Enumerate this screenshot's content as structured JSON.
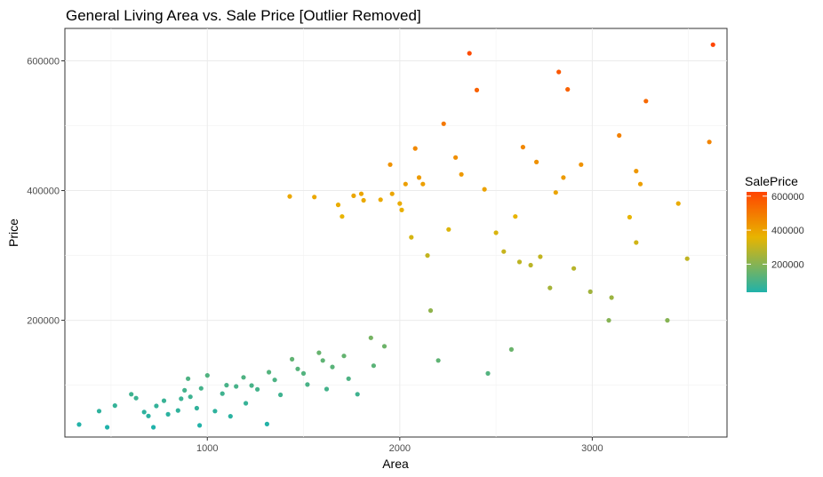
{
  "chart_data": {
    "type": "scatter",
    "title": "General Living Area vs. Sale Price [Outlier Removed]",
    "xlabel": "Area",
    "ylabel": "Price",
    "xlim": [
      260,
      3700
    ],
    "ylim": [
      20000,
      650000
    ],
    "x_ticks": [
      1000,
      2000,
      3000
    ],
    "x_tick_labels": [
      "1000",
      "2000",
      "3000"
    ],
    "y_ticks": [
      200000,
      400000,
      600000
    ],
    "y_tick_labels": [
      "200000",
      "400000",
      "600000"
    ],
    "grid": true,
    "legend": {
      "title": "SalePrice",
      "position": "right",
      "range": [
        35000,
        625000
      ],
      "ticks": [
        200000,
        400000,
        600000
      ],
      "tick_labels": [
        "200000",
        "400000",
        "600000"
      ]
    },
    "color_scale": [
      "#20b2aa",
      "#e8b400",
      "#ff4500"
    ],
    "points": [
      [
        334,
        39300
      ],
      [
        480,
        35000
      ],
      [
        438,
        60000
      ],
      [
        520,
        68500
      ],
      [
        605,
        86000
      ],
      [
        630,
        80000
      ],
      [
        672,
        58500
      ],
      [
        694,
        52500
      ],
      [
        720,
        35000
      ],
      [
        735,
        68000
      ],
      [
        775,
        76000
      ],
      [
        796,
        55000
      ],
      [
        848,
        61000
      ],
      [
        864,
        79000
      ],
      [
        882,
        92000
      ],
      [
        900,
        110000
      ],
      [
        912,
        82000
      ],
      [
        945,
        64500
      ],
      [
        960,
        37900
      ],
      [
        968,
        95000
      ],
      [
        1000,
        115000
      ],
      [
        1040,
        60000
      ],
      [
        1078,
        87000
      ],
      [
        1100,
        100000
      ],
      [
        1120,
        52000
      ],
      [
        1150,
        98000
      ],
      [
        1188,
        112000
      ],
      [
        1200,
        72000
      ],
      [
        1230,
        99500
      ],
      [
        1260,
        93500
      ],
      [
        1310,
        40000
      ],
      [
        1320,
        120000
      ],
      [
        1350,
        108000
      ],
      [
        1380,
        85000
      ],
      [
        1428,
        391000
      ],
      [
        1440,
        140000
      ],
      [
        1470,
        125000
      ],
      [
        1500,
        118000
      ],
      [
        1520,
        101000
      ],
      [
        1556,
        390000
      ],
      [
        1580,
        150000
      ],
      [
        1600,
        138000
      ],
      [
        1620,
        94000
      ],
      [
        1650,
        128000
      ],
      [
        1680,
        378000
      ],
      [
        1700,
        360000
      ],
      [
        1710,
        145000
      ],
      [
        1734,
        110000
      ],
      [
        1760,
        392000
      ],
      [
        1780,
        86000
      ],
      [
        1800,
        395000
      ],
      [
        1812,
        385000
      ],
      [
        1850,
        173000
      ],
      [
        1864,
        130000
      ],
      [
        1900,
        386000
      ],
      [
        1920,
        160000
      ],
      [
        1950,
        440000
      ],
      [
        1960,
        395000
      ],
      [
        2000,
        380000
      ],
      [
        2010,
        370000
      ],
      [
        2030,
        410000
      ],
      [
        2060,
        328000
      ],
      [
        2080,
        465000
      ],
      [
        2100,
        420000
      ],
      [
        2120,
        410000
      ],
      [
        2144,
        300000
      ],
      [
        2160,
        215000
      ],
      [
        2200,
        138000
      ],
      [
        2228,
        503000
      ],
      [
        2254,
        340000
      ],
      [
        2290,
        451000
      ],
      [
        2320,
        425000
      ],
      [
        2362,
        611600
      ],
      [
        2400,
        555000
      ],
      [
        2440,
        402000
      ],
      [
        2458,
        118000
      ],
      [
        2500,
        335000
      ],
      [
        2540,
        306000
      ],
      [
        2580,
        155000
      ],
      [
        2600,
        360000
      ],
      [
        2622,
        290000
      ],
      [
        2640,
        467000
      ],
      [
        2680,
        285000
      ],
      [
        2710,
        444000
      ],
      [
        2730,
        298000
      ],
      [
        2780,
        250000
      ],
      [
        2810,
        397000
      ],
      [
        2826,
        582900
      ],
      [
        2850,
        420000
      ],
      [
        2872,
        556000
      ],
      [
        2904,
        280000
      ],
      [
        2942,
        440000
      ],
      [
        2990,
        244000
      ],
      [
        3086,
        200000
      ],
      [
        3100,
        235000
      ],
      [
        3140,
        485000
      ],
      [
        3194,
        359000
      ],
      [
        3228,
        320000
      ],
      [
        3228,
        430000
      ],
      [
        3250,
        410000
      ],
      [
        3279,
        538000
      ],
      [
        3390,
        200000
      ],
      [
        3447,
        380000
      ],
      [
        3493,
        295000
      ],
      [
        3608,
        475000
      ],
      [
        3627,
        625000
      ]
    ]
  }
}
